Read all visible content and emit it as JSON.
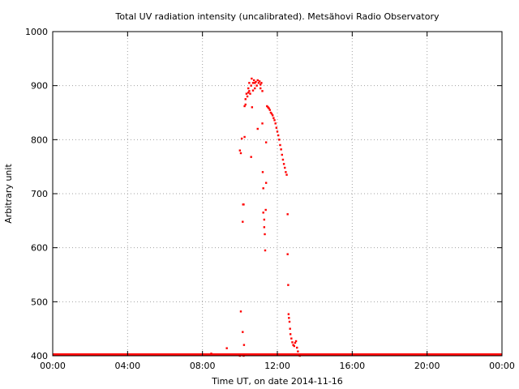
{
  "chart_data": {
    "type": "scatter",
    "title": "Total UV radiation intensity (uncalibrated). Metsähovi Radio Observatory",
    "xlabel": "Time UT, on date 2014-11-16",
    "ylabel": "Arbitrary unit",
    "xlim": [
      0,
      24
    ],
    "ylim": [
      400,
      1000
    ],
    "grid": true,
    "x_ticks": [
      {
        "value": 0,
        "label": "00:00"
      },
      {
        "value": 4,
        "label": "04:00"
      },
      {
        "value": 8,
        "label": "08:00"
      },
      {
        "value": 12,
        "label": "12:00"
      },
      {
        "value": 16,
        "label": "16:00"
      },
      {
        "value": 20,
        "label": "20:00"
      },
      {
        "value": 24,
        "label": "00:00"
      }
    ],
    "y_ticks": [
      {
        "value": 400,
        "label": "400"
      },
      {
        "value": 500,
        "label": "500"
      },
      {
        "value": 600,
        "label": "600"
      },
      {
        "value": 700,
        "label": "700"
      },
      {
        "value": 800,
        "label": "800"
      },
      {
        "value": 900,
        "label": "900"
      },
      {
        "value": 1000,
        "label": "1000"
      }
    ],
    "baseline": {
      "value": 400,
      "x_range": [
        0,
        24
      ]
    },
    "marker_color": "#ff0000",
    "points": [
      [
        8.47,
        404
      ],
      [
        9.3,
        414
      ],
      [
        10.0,
        400
      ],
      [
        10.05,
        482
      ],
      [
        10.15,
        444
      ],
      [
        10.2,
        400
      ],
      [
        10.22,
        420
      ],
      [
        10.0,
        780
      ],
      [
        10.05,
        775
      ],
      [
        10.1,
        802
      ],
      [
        10.15,
        648
      ],
      [
        10.17,
        680
      ],
      [
        10.2,
        680
      ],
      [
        10.25,
        805
      ],
      [
        10.25,
        862
      ],
      [
        10.3,
        865
      ],
      [
        10.3,
        875
      ],
      [
        10.35,
        885
      ],
      [
        10.4,
        880
      ],
      [
        10.45,
        887
      ],
      [
        10.45,
        895
      ],
      [
        10.5,
        890
      ],
      [
        10.5,
        905
      ],
      [
        10.55,
        885
      ],
      [
        10.6,
        900
      ],
      [
        10.6,
        768
      ],
      [
        10.63,
        913
      ],
      [
        10.65,
        860
      ],
      [
        10.7,
        905
      ],
      [
        10.7,
        891
      ],
      [
        10.75,
        910
      ],
      [
        10.8,
        905
      ],
      [
        10.8,
        895
      ],
      [
        10.85,
        907
      ],
      [
        10.9,
        900
      ],
      [
        10.95,
        910
      ],
      [
        10.95,
        820
      ],
      [
        11.0,
        905
      ],
      [
        11.05,
        908
      ],
      [
        11.1,
        895
      ],
      [
        11.1,
        902
      ],
      [
        11.15,
        905
      ],
      [
        11.2,
        890
      ],
      [
        11.2,
        830
      ],
      [
        11.22,
        740
      ],
      [
        11.25,
        710
      ],
      [
        11.25,
        665
      ],
      [
        11.3,
        652
      ],
      [
        11.3,
        638
      ],
      [
        11.33,
        625
      ],
      [
        11.35,
        595
      ],
      [
        11.38,
        670
      ],
      [
        11.4,
        720
      ],
      [
        11.4,
        795
      ],
      [
        11.45,
        862
      ],
      [
        11.5,
        860
      ],
      [
        11.55,
        858
      ],
      [
        11.6,
        855
      ],
      [
        11.65,
        850
      ],
      [
        11.7,
        848
      ],
      [
        11.75,
        845
      ],
      [
        11.8,
        840
      ],
      [
        11.85,
        836
      ],
      [
        11.9,
        830
      ],
      [
        11.95,
        822
      ],
      [
        12.0,
        815
      ],
      [
        12.05,
        808
      ],
      [
        12.1,
        800
      ],
      [
        12.15,
        790
      ],
      [
        12.2,
        782
      ],
      [
        12.25,
        772
      ],
      [
        12.3,
        763
      ],
      [
        12.35,
        755
      ],
      [
        12.4,
        748
      ],
      [
        12.45,
        740
      ],
      [
        12.5,
        735
      ],
      [
        12.55,
        662
      ],
      [
        12.55,
        588
      ],
      [
        12.58,
        531
      ],
      [
        12.6,
        477
      ],
      [
        12.62,
        470
      ],
      [
        12.65,
        463
      ],
      [
        12.68,
        450
      ],
      [
        12.7,
        440
      ],
      [
        12.75,
        432
      ],
      [
        12.8,
        425
      ],
      [
        12.85,
        420
      ],
      [
        12.9,
        418
      ],
      [
        12.95,
        424
      ],
      [
        13.0,
        427
      ],
      [
        13.05,
        415
      ],
      [
        13.1,
        408
      ],
      [
        13.15,
        402
      ],
      [
        13.2,
        400
      ]
    ]
  }
}
